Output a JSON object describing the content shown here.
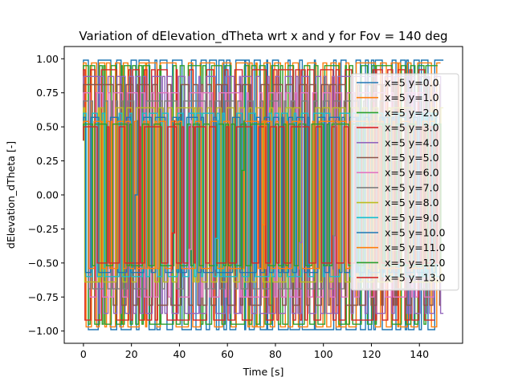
{
  "chart_data": {
    "type": "line",
    "title": "Variation of dElevation_dTheta wrt x and y for Fov = 140 deg",
    "xlabel": "Time [s]",
    "ylabel": "dElevation_dTheta [-]",
    "xlim": [
      -8,
      158
    ],
    "ylim": [
      -1.09,
      1.09
    ],
    "xticks": [
      0,
      20,
      40,
      60,
      80,
      100,
      120,
      140
    ],
    "xtick_labels": [
      "0",
      "20",
      "40",
      "60",
      "80",
      "100",
      "120",
      "140"
    ],
    "yticks": [
      -1.0,
      -0.75,
      -0.5,
      -0.25,
      0.0,
      0.25,
      0.5,
      0.75,
      1.0
    ],
    "ytick_labels": [
      "−1.00",
      "−0.75",
      "−0.50",
      "−0.25",
      "0.00",
      "0.25",
      "0.50",
      "0.75",
      "1.00"
    ],
    "grid": false,
    "legend_position": "right",
    "x_range": [
      0,
      150
    ],
    "series": [
      {
        "name": "x=5 y=0.0",
        "color": "#1f77b4",
        "level": 0.99
      },
      {
        "name": "x=5 y=1.0",
        "color": "#ff7f0e",
        "level": 0.97
      },
      {
        "name": "x=5 y=2.0",
        "color": "#2ca02c",
        "level": 0.95
      },
      {
        "name": "x=5 y=3.0",
        "color": "#d62728",
        "level": 0.92
      },
      {
        "name": "x=5 y=4.0",
        "color": "#9467bd",
        "level": 0.87
      },
      {
        "name": "x=5 y=5.0",
        "color": "#8c564b",
        "level": 0.81
      },
      {
        "name": "x=5 y=6.0",
        "color": "#e377c2",
        "level": 0.75
      },
      {
        "name": "x=5 y=7.0",
        "color": "#7f7f7f",
        "level": 0.69
      },
      {
        "name": "x=5 y=8.0",
        "color": "#bcbd22",
        "level": 0.64
      },
      {
        "name": "x=5 y=9.0",
        "color": "#17becf",
        "level": 0.6
      },
      {
        "name": "x=5 y=10.0",
        "color": "#1f77b4",
        "level": 0.57
      },
      {
        "name": "x=5 y=11.0",
        "color": "#ff7f0e",
        "level": 0.54
      },
      {
        "name": "x=5 y=12.0",
        "color": "#2ca02c",
        "level": 0.52
      },
      {
        "name": "x=5 y=13.0",
        "color": "#d62728",
        "level": 0.5
      }
    ]
  }
}
